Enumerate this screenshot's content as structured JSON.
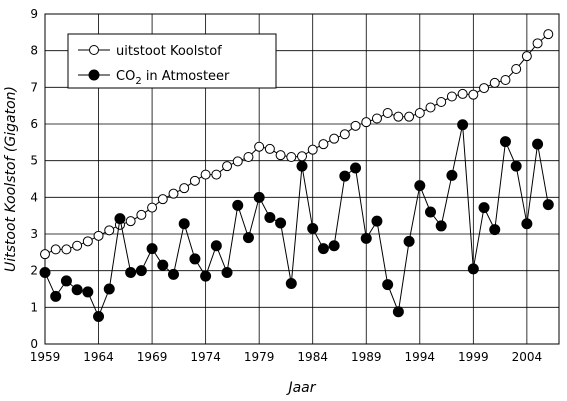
{
  "chart_data": {
    "type": "line",
    "xlabel": "Jaar",
    "ylabel": "Uitstoot Koolstof (Gigaton)",
    "xlim": [
      1959,
      2007
    ],
    "ylim": [
      0,
      9
    ],
    "x_ticks": [
      "1959",
      "1964",
      "1969",
      "1974",
      "1979",
      "1984",
      "1989",
      "1994",
      "1999",
      "2004"
    ],
    "y_ticks": [
      "0",
      "1",
      "2",
      "3",
      "4",
      "5",
      "6",
      "7",
      "8",
      "9"
    ],
    "grid": true,
    "legend_position": "top-left",
    "series": [
      {
        "name": "uitstoot Koolstof",
        "marker": "open-circle",
        "color": "#000000",
        "points": [
          [
            1959,
            2.45
          ],
          [
            1960,
            2.58
          ],
          [
            1961,
            2.58
          ],
          [
            1962,
            2.68
          ],
          [
            1963,
            2.8
          ],
          [
            1964,
            2.95
          ],
          [
            1965,
            3.1
          ],
          [
            1966,
            3.25
          ],
          [
            1967,
            3.35
          ],
          [
            1968,
            3.52
          ],
          [
            1969,
            3.72
          ],
          [
            1970,
            3.95
          ],
          [
            1971,
            4.1
          ],
          [
            1972,
            4.25
          ],
          [
            1973,
            4.45
          ],
          [
            1974,
            4.62
          ],
          [
            1975,
            4.62
          ],
          [
            1976,
            4.85
          ],
          [
            1977,
            4.98
          ],
          [
            1978,
            5.1
          ],
          [
            1979,
            5.38
          ],
          [
            1980,
            5.32
          ],
          [
            1981,
            5.15
          ],
          [
            1982,
            5.1
          ],
          [
            1983,
            5.12
          ],
          [
            1984,
            5.3
          ],
          [
            1985,
            5.45
          ],
          [
            1986,
            5.6
          ],
          [
            1987,
            5.72
          ],
          [
            1988,
            5.95
          ],
          [
            1989,
            6.05
          ],
          [
            1990,
            6.15
          ],
          [
            1991,
            6.3
          ],
          [
            1992,
            6.2
          ],
          [
            1993,
            6.2
          ],
          [
            1994,
            6.3
          ],
          [
            1995,
            6.45
          ],
          [
            1996,
            6.6
          ],
          [
            1997,
            6.75
          ],
          [
            1998,
            6.82
          ],
          [
            1999,
            6.8
          ],
          [
            2000,
            6.98
          ],
          [
            2001,
            7.12
          ],
          [
            2002,
            7.2
          ],
          [
            2003,
            7.5
          ],
          [
            2004,
            7.85
          ],
          [
            2005,
            8.2
          ],
          [
            2006,
            8.45
          ]
        ]
      },
      {
        "name_prefix": "CO",
        "name_subscript": "2",
        "name_suffix": " in Atmosteer",
        "marker": "filled-circle",
        "color": "#000000",
        "points": [
          [
            1959,
            1.95
          ],
          [
            1960,
            1.3
          ],
          [
            1961,
            1.72
          ],
          [
            1962,
            1.48
          ],
          [
            1963,
            1.42
          ],
          [
            1964,
            0.75
          ],
          [
            1965,
            1.5
          ],
          [
            1966,
            3.42
          ],
          [
            1967,
            1.95
          ],
          [
            1968,
            2.0
          ],
          [
            1969,
            2.6
          ],
          [
            1970,
            2.15
          ],
          [
            1971,
            1.9
          ],
          [
            1972,
            3.28
          ],
          [
            1973,
            2.32
          ],
          [
            1974,
            1.85
          ],
          [
            1975,
            2.68
          ],
          [
            1976,
            1.95
          ],
          [
            1977,
            3.78
          ],
          [
            1978,
            2.9
          ],
          [
            1979,
            4.0
          ],
          [
            1980,
            3.45
          ],
          [
            1981,
            3.3
          ],
          [
            1982,
            1.65
          ],
          [
            1983,
            4.85
          ],
          [
            1984,
            3.15
          ],
          [
            1985,
            2.6
          ],
          [
            1986,
            2.68
          ],
          [
            1987,
            4.58
          ],
          [
            1988,
            4.8
          ],
          [
            1989,
            2.88
          ],
          [
            1990,
            3.35
          ],
          [
            1991,
            1.62
          ],
          [
            1992,
            0.88
          ],
          [
            1993,
            2.8
          ],
          [
            1994,
            4.32
          ],
          [
            1995,
            3.6
          ],
          [
            1996,
            3.22
          ],
          [
            1997,
            4.6
          ],
          [
            1998,
            5.98
          ],
          [
            1999,
            2.05
          ],
          [
            2000,
            3.72
          ],
          [
            2001,
            3.12
          ],
          [
            2002,
            5.52
          ],
          [
            2003,
            4.85
          ],
          [
            2004,
            3.28
          ],
          [
            2005,
            5.45
          ],
          [
            2006,
            3.8
          ]
        ]
      }
    ]
  }
}
